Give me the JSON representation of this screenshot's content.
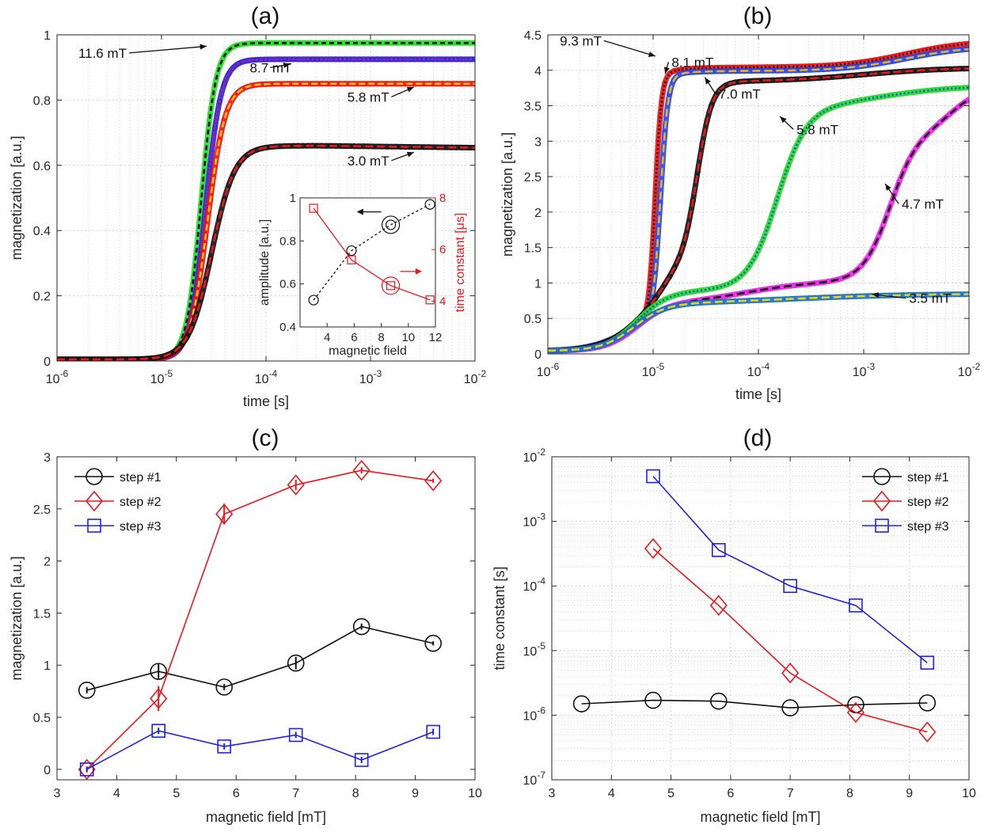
{
  "figure": {
    "background": "#ffffff",
    "axis_color": "#262626",
    "grid_color": "#c8c8c8"
  },
  "chart_data": [
    {
      "panel": "(a)",
      "type": "line",
      "xscale": "log",
      "xlim": [
        1e-06,
        0.01
      ],
      "ylim": [
        0,
        1
      ],
      "xlabel": "time [s]",
      "ylabel": "magnetization [a.u.]",
      "xticks": [
        1e-06,
        1e-05,
        0.0001,
        0.001,
        0.01
      ],
      "xtick_labels": [
        [
          "10",
          "-6"
        ],
        [
          "10",
          "-5"
        ],
        [
          "10",
          "-4"
        ],
        [
          "10",
          "-3"
        ],
        [
          "10",
          "-2"
        ]
      ],
      "yticks": [
        0,
        0.2,
        0.4,
        0.6,
        0.8,
        1
      ],
      "ytick_labels": [
        "0",
        "0.2",
        "0.4",
        "0.6",
        "0.8",
        "1"
      ],
      "grid": true,
      "series": [
        {
          "name": "11.6 mT",
          "color": "#22dd22",
          "fit_color": "#111111",
          "fit_dash": "6,4",
          "style": "sigmoid",
          "params": {
            "A": 0.97,
            "x0": -4.62,
            "w": 0.07
          }
        },
        {
          "name": "8.7 mT",
          "color": "#2222ee",
          "fit_color": "#e8181f",
          "fit_dash": "2,3",
          "style": "sigmoid",
          "params": {
            "A": 0.92,
            "x0": -4.58,
            "w": 0.075
          }
        },
        {
          "name": "5.8 mT",
          "color": "#ee1111",
          "fit_color": "#e8c21c",
          "fit_dash": "8,4",
          "style": "sigmoid",
          "params": {
            "A": 0.845,
            "x0": -4.56,
            "w": 0.085
          }
        },
        {
          "name": "3.0 mT",
          "color": "#111111",
          "fit_color": "#e8181f",
          "fit_dash": "10,5",
          "style": "sigmoid",
          "params": {
            "A": 0.655,
            "x0": -4.52,
            "w": 0.11
          }
        }
      ],
      "annotations": [
        {
          "text": "11.6 mT",
          "x": 1.6e-06,
          "y": 0.93,
          "ax": 2.7e-05,
          "ay": 0.965
        },
        {
          "text": "8.7 mT",
          "x": 7e-05,
          "y": 0.885,
          "ax": 0.00017,
          "ay": 0.91
        },
        {
          "text": "5.8 mT",
          "x": 0.0006,
          "y": 0.795,
          "ax": 0.0026,
          "ay": 0.84
        },
        {
          "text": "3.0 mT",
          "x": 0.0006,
          "y": 0.6,
          "ax": 0.0026,
          "ay": 0.64
        }
      ],
      "inset": {
        "xlim": [
          2,
          12
        ],
        "ylim_left": [
          0.4,
          1
        ],
        "ylim_right": [
          3,
          8
        ],
        "xlabel": "magnetic field",
        "ylabel_left": "amplitude [a.u.]",
        "ylabel_right": "time constant [μs]",
        "xticks": [
          2,
          4,
          6,
          8,
          10,
          12
        ],
        "xtick_labels": [
          "",
          "4",
          "6",
          "8",
          "10",
          "12"
        ],
        "yticks_left": [
          0.4,
          0.6,
          0.8,
          1
        ],
        "ytick_labels_left": [
          "0.4",
          "0.6",
          "0.8",
          "1"
        ],
        "yticks_right": [
          4,
          6,
          8
        ],
        "ytick_labels_right": [
          "4",
          "6",
          "8"
        ],
        "amplitude": {
          "x": [
            3.0,
            5.8,
            8.7,
            11.6
          ],
          "y": [
            0.525,
            0.755,
            0.875,
            0.97
          ],
          "color": "#111111"
        },
        "time_constant": {
          "x": [
            3.0,
            5.8,
            8.7,
            11.6
          ],
          "y": [
            7.6,
            5.6,
            4.6,
            4.05
          ],
          "color": "#e8181f"
        }
      }
    },
    {
      "panel": "(b)",
      "type": "line",
      "xscale": "log",
      "xlim": [
        1e-06,
        0.01
      ],
      "ylim": [
        0,
        4.5
      ],
      "xlabel": "time [s]",
      "ylabel": "magnetization [a.u.]",
      "xticks": [
        1e-06,
        1e-05,
        0.0001,
        0.001,
        0.01
      ],
      "xtick_labels": [
        [
          "10",
          "-6"
        ],
        [
          "10",
          "-5"
        ],
        [
          "10",
          "-4"
        ],
        [
          "10",
          "-3"
        ],
        [
          "10",
          "-2"
        ]
      ],
      "yticks": [
        0,
        0.5,
        1,
        1.5,
        2,
        2.5,
        3,
        3.5,
        4,
        4.5
      ],
      "ytick_labels": [
        "0",
        "0.5",
        "1",
        "1.5",
        "2",
        "2.5",
        "3",
        "3.5",
        "4",
        "4.5"
      ],
      "grid": true,
      "series": [
        {
          "name": "9.3 mT",
          "color": "#ee1111",
          "fit_color": "#111111",
          "fit_dash": "2,3",
          "style": "multi",
          "params": {
            "base": 0.04,
            "steps": [
              {
                "A": 0.55,
                "x0": -5.25,
                "w": 0.18
              },
              {
                "A": 3.45,
                "x0": -4.98,
                "w": 0.03
              },
              {
                "A": 0.38,
                "x0": -2.6,
                "w": 0.3
              }
            ]
          }
        },
        {
          "name": "8.1 mT",
          "color": "#2244ee",
          "fit_color": "#e8b21c",
          "fit_dash": "10,5",
          "style": "multi",
          "params": {
            "base": 0.04,
            "steps": [
              {
                "A": 0.55,
                "x0": -5.25,
                "w": 0.18
              },
              {
                "A": 3.4,
                "x0": -4.93,
                "w": 0.035
              },
              {
                "A": 0.35,
                "x0": -2.6,
                "w": 0.3
              }
            ]
          }
        },
        {
          "name": "7.0 mT",
          "color": "#111111",
          "fit_color": "#e8181f",
          "fit_dash": "10,5",
          "style": "multi",
          "params": {
            "base": 0.04,
            "steps": [
              {
                "A": 0.8,
                "x0": -5.15,
                "w": 0.18
              },
              {
                "A": 0.5,
                "x0": -4.9,
                "w": 0.1
              },
              {
                "A": 2.5,
                "x0": -4.58,
                "w": 0.07
              },
              {
                "A": 0.2,
                "x0": -3.0,
                "w": 0.4
              }
            ]
          }
        },
        {
          "name": "5.8 mT",
          "color": "#22dd22",
          "fit_color": "#2244ee",
          "fit_dash": "2,3",
          "style": "multi",
          "params": {
            "base": 0.04,
            "steps": [
              {
                "A": 0.85,
                "x0": -5.15,
                "w": 0.15
              },
              {
                "A": 2.55,
                "x0": -3.82,
                "w": 0.14
              },
              {
                "A": 0.35,
                "x0": -2.9,
                "w": 0.4
              }
            ]
          }
        },
        {
          "name": "4.7 mT",
          "color": "#ee22ee",
          "fit_color": "#111111",
          "fit_dash": "10,5",
          "style": "multi",
          "params": {
            "base": 0.04,
            "steps": [
              {
                "A": 0.68,
                "x0": -5.15,
                "w": 0.15
              },
              {
                "A": 0.3,
                "x0": -4.1,
                "w": 0.3
              },
              {
                "A": 2.1,
                "x0": -2.75,
                "w": 0.13
              },
              {
                "A": 0.65,
                "x0": -2.15,
                "w": 0.15
              }
            ]
          }
        },
        {
          "name": "3.5 mT",
          "color": "#1a72c8",
          "fit_color": "#e8d21c",
          "fit_dash": "10,5",
          "style": "multi",
          "params": {
            "base": 0.04,
            "steps": [
              {
                "A": 0.66,
                "x0": -5.18,
                "w": 0.15
              },
              {
                "A": 0.15,
                "x0": -3.7,
                "w": 0.6
              }
            ]
          }
        }
      ],
      "annotations": [
        {
          "text": "9.3 mT",
          "x": 1.3e-06,
          "y": 4.35,
          "ax": 1.05e-05,
          "ay": 4.2
        },
        {
          "text": "8.1 mT",
          "x": 1.5e-05,
          "y": 4.05,
          "ax": 1.3e-05,
          "ay": 3.95
        },
        {
          "text": "7.0 mT",
          "x": 4.2e-05,
          "y": 3.6,
          "ax": 3.1e-05,
          "ay": 3.9
        },
        {
          "text": "5.8 mT",
          "x": 0.00023,
          "y": 3.1,
          "ax": 0.00016,
          "ay": 3.35
        },
        {
          "text": "4.7 mT",
          "x": 0.0023,
          "y": 2.05,
          "ax": 0.0016,
          "ay": 2.4
        },
        {
          "text": "3.5 mT",
          "x": 0.0027,
          "y": 0.72,
          "ax": 0.0012,
          "ay": 0.84
        }
      ]
    },
    {
      "panel": "(c)",
      "type": "line",
      "xscale": "linear",
      "xlim": [
        3,
        10
      ],
      "ylim": [
        -0.1,
        3
      ],
      "xlabel": "magnetic field [mT]",
      "ylabel": "magnetization [a.u.]",
      "xticks": [
        3,
        4,
        5,
        6,
        7,
        8,
        9,
        10
      ],
      "xtick_labels": [
        "3",
        "4",
        "5",
        "6",
        "7",
        "8",
        "9",
        "10"
      ],
      "yticks": [
        0,
        0.5,
        1,
        1.5,
        2,
        2.5,
        3
      ],
      "ytick_labels": [
        "0",
        "0.5",
        "1",
        "1.5",
        "2",
        "2.5",
        "3"
      ],
      "grid": false,
      "legend": "top-left",
      "series": [
        {
          "name": "step #1",
          "color": "#111111",
          "marker": "circle",
          "x": [
            3.5,
            4.7,
            5.8,
            7.0,
            8.1,
            9.3
          ],
          "y": [
            0.76,
            0.94,
            0.79,
            1.02,
            1.37,
            1.21
          ],
          "err": [
            0.03,
            0.07,
            0.03,
            0.06,
            0.03,
            0.02
          ]
        },
        {
          "name": "step #2",
          "color": "#e8181f",
          "marker": "diamond",
          "x": [
            3.5,
            4.7,
            5.8,
            7.0,
            8.1,
            9.3
          ],
          "y": [
            0.0,
            0.68,
            2.45,
            2.73,
            2.87,
            2.77
          ],
          "err": [
            0.03,
            0.12,
            0.1,
            0.05,
            0.03,
            0.02
          ]
        },
        {
          "name": "step #3",
          "color": "#2222dd",
          "marker": "square",
          "x": [
            3.5,
            4.7,
            5.8,
            7.0,
            8.1,
            9.3
          ],
          "y": [
            0.0,
            0.37,
            0.22,
            0.33,
            0.09,
            0.36
          ],
          "err": [
            0.02,
            0.03,
            0.03,
            0.03,
            0.03,
            0.03
          ]
        }
      ]
    },
    {
      "panel": "(d)",
      "type": "line",
      "xscale": "linear",
      "yscale": "log",
      "xlim": [
        3,
        10
      ],
      "ylim": [
        1e-07,
        0.01
      ],
      "xlabel": "magnetic field [mT]",
      "ylabel": "time constant [s]",
      "xticks": [
        3,
        4,
        5,
        6,
        7,
        8,
        9,
        10
      ],
      "xtick_labels": [
        "3",
        "4",
        "5",
        "6",
        "7",
        "8",
        "9",
        "10"
      ],
      "yticks": [
        1e-07,
        1e-06,
        1e-05,
        0.0001,
        0.001,
        0.01
      ],
      "ytick_labels": [
        [
          "10",
          "-7"
        ],
        [
          "10",
          "-6"
        ],
        [
          "10",
          "-5"
        ],
        [
          "10",
          "-4"
        ],
        [
          "10",
          "-3"
        ],
        [
          "10",
          "-2"
        ]
      ],
      "grid": true,
      "legend": "top-right",
      "series": [
        {
          "name": "step #1",
          "color": "#111111",
          "marker": "circle",
          "x": [
            3.5,
            4.7,
            5.8,
            7.0,
            8.1,
            9.3
          ],
          "y": [
            1.5e-06,
            1.7e-06,
            1.65e-06,
            1.3e-06,
            1.45e-06,
            1.55e-06
          ]
        },
        {
          "name": "step #2",
          "color": "#e8181f",
          "marker": "diamond",
          "x": [
            4.7,
            5.8,
            7.0,
            8.1,
            9.3
          ],
          "y": [
            0.00038,
            5e-05,
            4.5e-06,
            1.1e-06,
            5.5e-07
          ]
        },
        {
          "name": "step #3",
          "color": "#2222dd",
          "marker": "square",
          "x": [
            4.7,
            5.8,
            7.0,
            8.1,
            9.3
          ],
          "y": [
            0.005,
            0.00036,
            0.0001,
            5e-05,
            6.5e-06
          ]
        }
      ]
    }
  ]
}
